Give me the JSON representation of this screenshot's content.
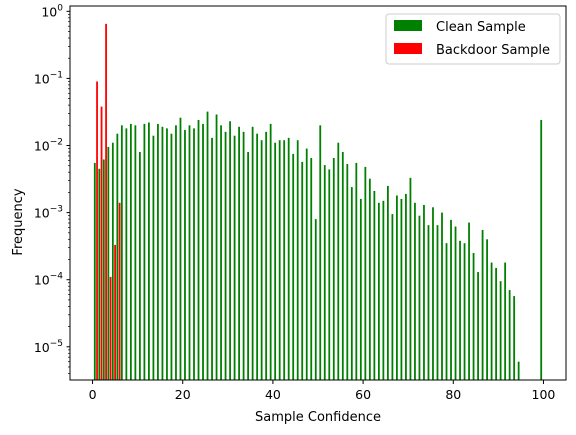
{
  "chart_data": {
    "type": "bar",
    "xlabel": "Sample Confidence",
    "ylabel": "Frequency",
    "xlim": [
      -5,
      105
    ],
    "ylim": [
      3.2e-06,
      1.2
    ],
    "y_scale": "log",
    "grid": false,
    "legend_position": "top-right",
    "x_ticks": [
      0,
      20,
      40,
      60,
      80,
      100
    ],
    "y_ticks": [
      {
        "value": 1e-05,
        "base": "10",
        "exp": "−5"
      },
      {
        "value": 0.0001,
        "base": "10",
        "exp": "−4"
      },
      {
        "value": 0.001,
        "base": "10",
        "exp": "−3"
      },
      {
        "value": 0.01,
        "base": "10",
        "exp": "−2"
      },
      {
        "value": 0.1,
        "base": "10",
        "exp": "−1"
      },
      {
        "value": 1,
        "base": "10",
        "exp": "0"
      }
    ],
    "series": [
      {
        "name": "Clean Sample",
        "color": "#008000",
        "x": [
          0.5,
          1.5,
          2.5,
          3.5,
          4.5,
          5.5,
          6.5,
          7.5,
          8.5,
          9.5,
          10.5,
          11.5,
          12.5,
          13.5,
          14.5,
          15.5,
          16.5,
          17.5,
          18.5,
          19.5,
          20.5,
          21.5,
          22.5,
          23.5,
          24.5,
          25.5,
          26.5,
          27.5,
          28.5,
          29.5,
          30.5,
          31.5,
          32.5,
          33.5,
          34.5,
          35.5,
          36.5,
          37.5,
          38.5,
          39.5,
          40.5,
          41.5,
          42.5,
          43.5,
          44.5,
          45.5,
          46.5,
          47.5,
          48.5,
          49.5,
          50.5,
          51.5,
          52.5,
          53.5,
          54.5,
          55.5,
          56.5,
          57.5,
          58.5,
          59.5,
          60.5,
          61.5,
          62.5,
          63.5,
          64.5,
          65.5,
          66.5,
          67.5,
          68.5,
          69.5,
          70.5,
          71.5,
          72.5,
          73.5,
          74.5,
          75.5,
          76.5,
          77.5,
          78.5,
          79.5,
          80.5,
          81.5,
          82.5,
          83.5,
          84.5,
          85.5,
          86.5,
          87.5,
          88.5,
          89.5,
          90.5,
          91.5,
          92.5,
          93.5,
          94.5,
          99.5
        ],
        "values": [
          0.0055,
          0.0045,
          0.0062,
          0.0095,
          0.011,
          0.015,
          0.02,
          0.018,
          0.021,
          0.02,
          0.008,
          0.021,
          0.022,
          0.014,
          0.021,
          0.019,
          0.018,
          0.015,
          0.02,
          0.026,
          0.017,
          0.02,
          0.018,
          0.024,
          0.021,
          0.032,
          0.013,
          0.029,
          0.02,
          0.016,
          0.023,
          0.014,
          0.019,
          0.016,
          0.008,
          0.019,
          0.015,
          0.012,
          0.016,
          0.021,
          0.011,
          0.012,
          0.012,
          0.013,
          0.0075,
          0.012,
          0.0057,
          0.009,
          0.0065,
          0.0008,
          0.02,
          0.0051,
          0.0044,
          0.0065,
          0.011,
          0.008,
          0.0053,
          0.0024,
          0.0055,
          0.0016,
          0.0048,
          0.0032,
          0.0021,
          0.0014,
          0.0015,
          0.0025,
          0.00095,
          0.0018,
          0.0016,
          0.0019,
          0.0033,
          0.0014,
          0.0009,
          0.0013,
          0.00065,
          0.0012,
          0.00065,
          0.001,
          0.00035,
          0.00078,
          0.00062,
          0.00038,
          0.00035,
          0.00071,
          0.00025,
          0.00013,
          0.00055,
          0.0004,
          0.00018,
          0.00015,
          9.5e-05,
          0.00018,
          7e-05,
          5.7e-05,
          6e-06,
          0.024
        ]
      },
      {
        "name": "Backdoor Sample",
        "color": "#ff0000",
        "x": [
          1,
          2,
          3,
          4,
          5,
          6,
          7
        ],
        "values": [
          0.09,
          0.038,
          0.65,
          0.00011,
          0.00033,
          0.0014,
          0.0
        ]
      }
    ]
  }
}
